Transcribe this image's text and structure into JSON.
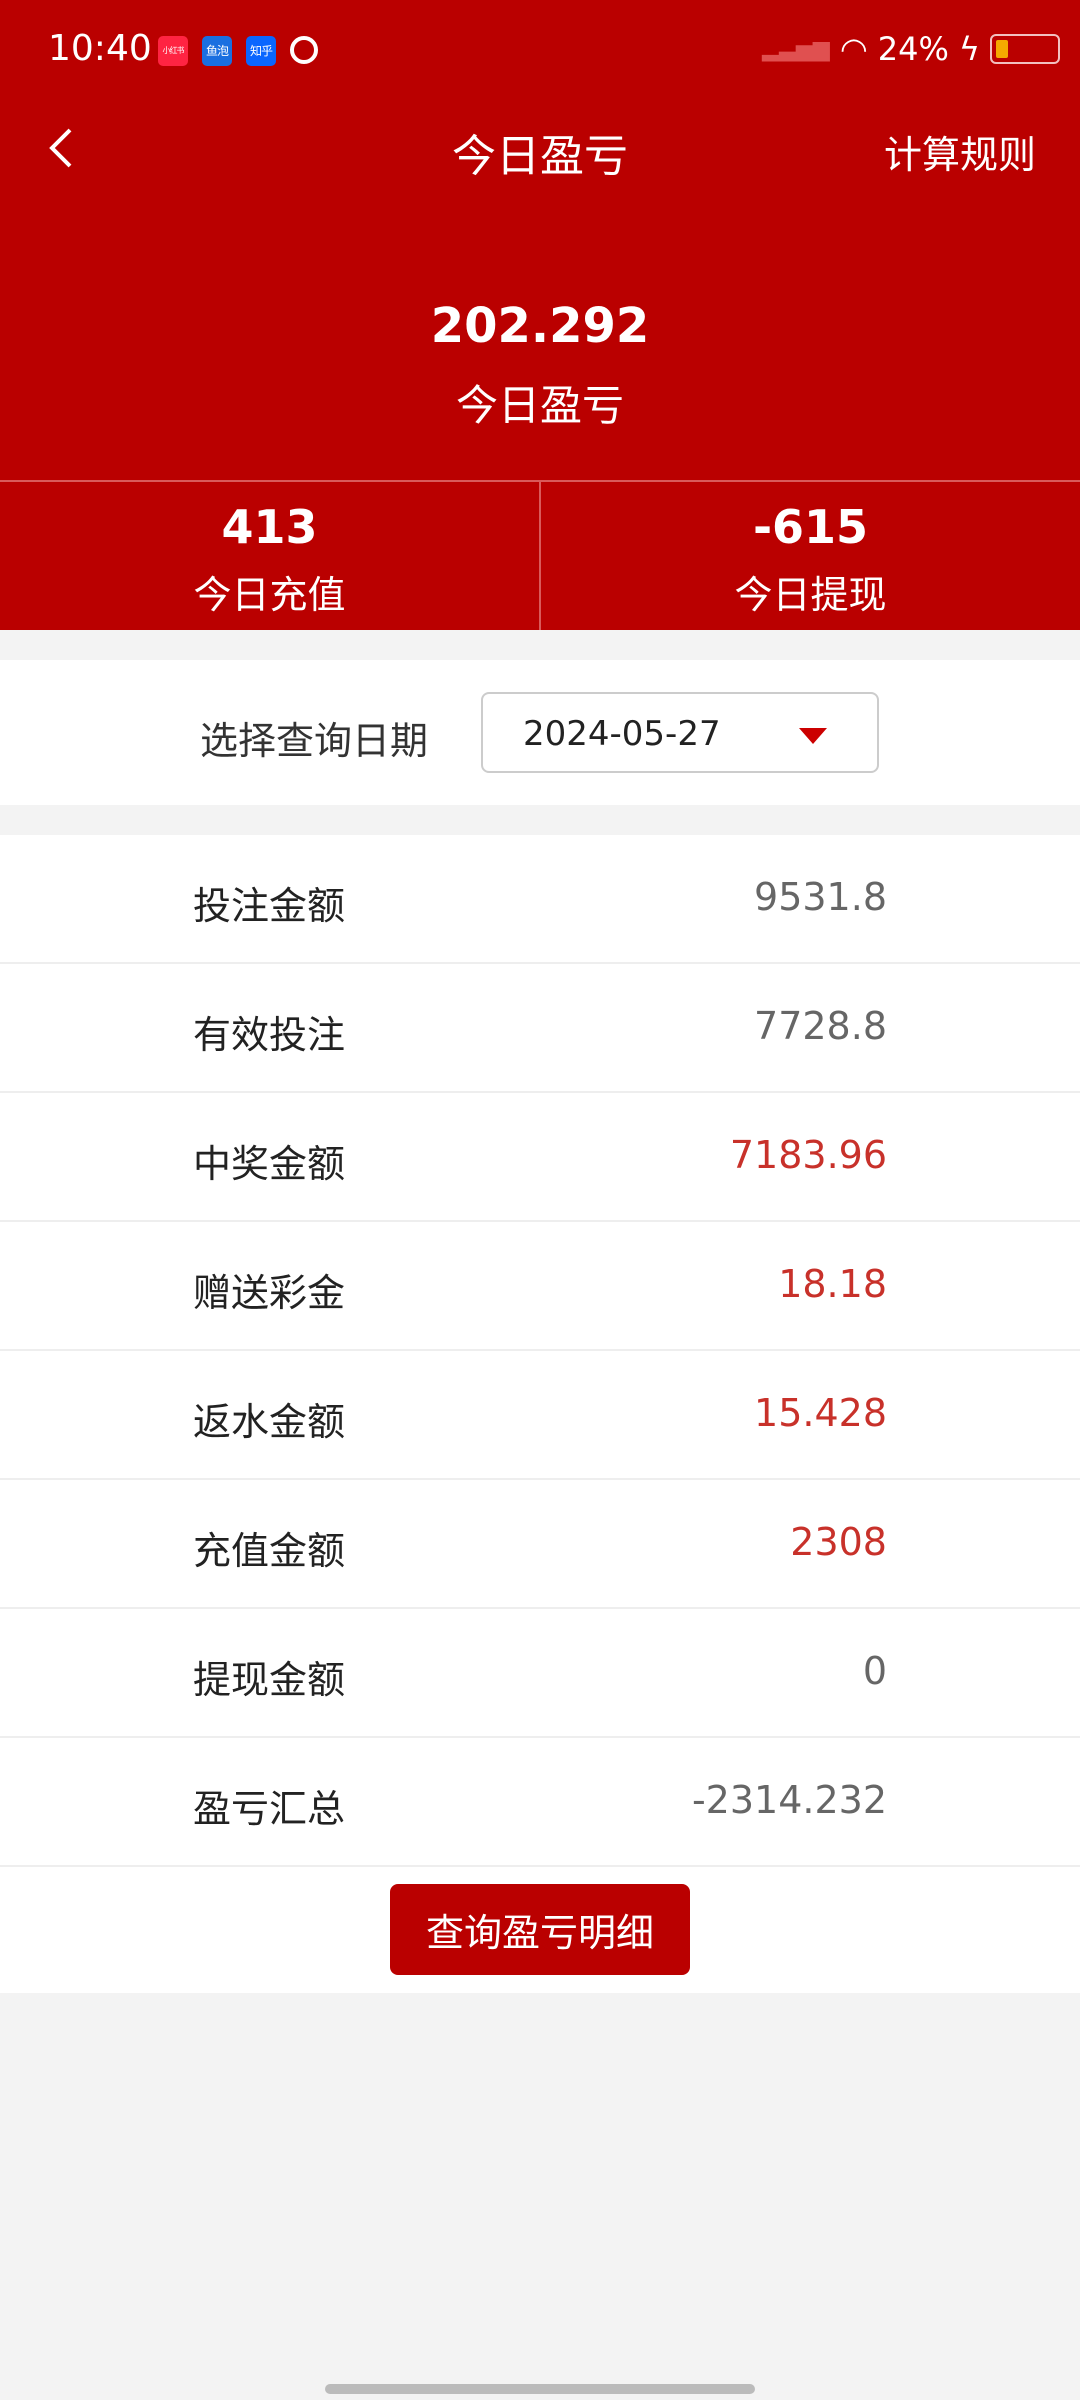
{
  "status_bar": {
    "time": "10:40",
    "battery": "24%",
    "battery_level": 0.24,
    "apps": [
      "小红书",
      "鱼泡",
      "知乎"
    ]
  },
  "header": {
    "title": "今日盈亏",
    "rules": "计算规则"
  },
  "summary": {
    "value": "202.292",
    "label": "今日盈亏"
  },
  "stats": [
    {
      "value": "413",
      "label": "今日充值"
    },
    {
      "value": "-615",
      "label": "今日提现"
    }
  ],
  "date_filter": {
    "label": "选择查询日期",
    "value": "2024-05-27"
  },
  "rows": [
    {
      "label": "投注金额",
      "value": "9531.8",
      "red": false
    },
    {
      "label": "有效投注",
      "value": "7728.8",
      "red": false
    },
    {
      "label": "中奖金额",
      "value": "7183.96",
      "red": true
    },
    {
      "label": "赠送彩金",
      "value": "18.18",
      "red": true
    },
    {
      "label": "返水金额",
      "value": "15.428",
      "red": true
    },
    {
      "label": "充值金额",
      "value": "2308",
      "red": true
    },
    {
      "label": "提现金额",
      "value": "0",
      "red": false
    },
    {
      "label": "盈亏汇总",
      "value": "-2314.232",
      "red": false
    }
  ],
  "button": {
    "label": "查询盈亏明细"
  },
  "colors": {
    "brand": "#ba0000",
    "value_red": "#c8312a"
  }
}
